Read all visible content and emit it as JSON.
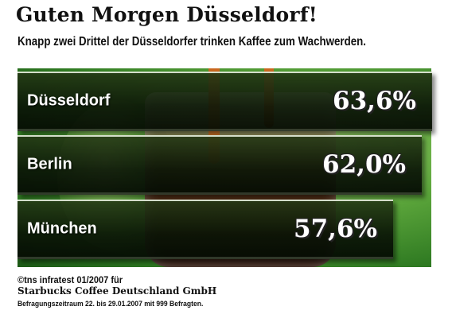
{
  "chart_data": {
    "type": "bar",
    "orientation": "horizontal",
    "title": "Guten Morgen Düsseldorf!",
    "subtitle": "Knapp zwei Drittel der Düsseldorfer trinken Kaffee zum Wachwerden.",
    "categories": [
      "Düsseldorf",
      "Berlin",
      "München"
    ],
    "values": [
      63.6,
      62.0,
      57.6
    ],
    "value_labels": [
      "63,6%",
      "62,0%",
      "57,6%"
    ],
    "unit": "%",
    "xlim": [
      0,
      64
    ],
    "grid": false,
    "legend": "none"
  },
  "source": {
    "line1": "©tns infratest 01/2007 für",
    "line2": "Starbucks Coffee Deutschland GmbH",
    "line3": "Befragungszeitraum 22. bis 29.01.2007 mit 999 Befragten."
  },
  "colors": {
    "background": "#ffffff",
    "text": "#111111",
    "bar_text": "#ffffff"
  }
}
